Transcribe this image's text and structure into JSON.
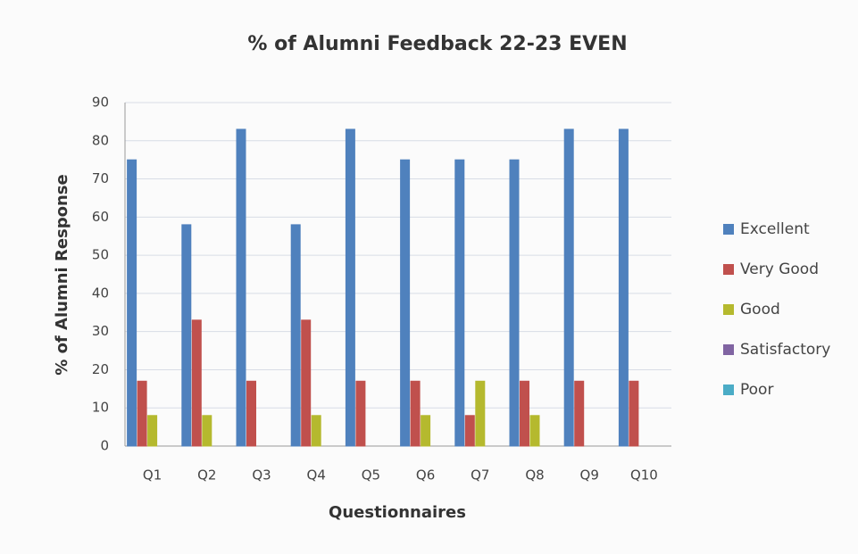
{
  "chart_data": {
    "type": "bar",
    "title": "% of Alumni Feedback 22-23 EVEN",
    "x_label": "Questionnaires",
    "y_label": "% of Alumni Response",
    "categories": [
      "Q1",
      "Q2",
      "Q3",
      "Q4",
      "Q5",
      "Q6",
      "Q7",
      "Q8",
      "Q9",
      "Q10"
    ],
    "series": [
      {
        "name": "Excellent",
        "color": "#4f81bd",
        "values": [
          75,
          58,
          83,
          58,
          83,
          75,
          75,
          75,
          83,
          83
        ]
      },
      {
        "name": "Very Good",
        "color": "#c0504d",
        "values": [
          17,
          33,
          17,
          33,
          17,
          17,
          8,
          17,
          17,
          17
        ]
      },
      {
        "name": "Good",
        "color": "#b5b92e",
        "values": [
          8,
          8,
          0,
          8,
          0,
          8,
          17,
          8,
          0,
          0
        ]
      },
      {
        "name": "Satisfactory",
        "color": "#8064a2",
        "values": [
          0,
          0,
          0,
          0,
          0,
          0,
          0,
          0,
          0,
          0
        ]
      },
      {
        "name": "Poor",
        "color": "#4bacc6",
        "values": [
          0,
          0,
          0,
          0,
          0,
          0,
          0,
          0,
          0,
          0
        ]
      }
    ],
    "ylim": [
      0,
      90
    ],
    "yticks": [
      0,
      10,
      20,
      30,
      40,
      50,
      60,
      70,
      80,
      90
    ],
    "grid": true,
    "legend": "right"
  }
}
